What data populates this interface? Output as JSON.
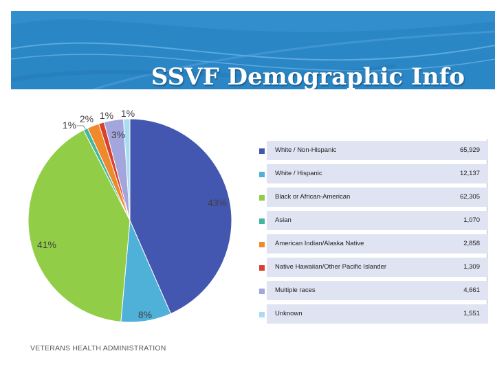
{
  "slide": {
    "title": "SSVF Demographic Info",
    "footer": "VETERANS HEALTH ADMINISTRATION",
    "banner_color": "#2b86c6"
  },
  "chart_data": {
    "type": "pie",
    "title": "",
    "slices": [
      {
        "name": "White / Non-Hispanic",
        "value": 65929,
        "display": "65,929",
        "label": "43%",
        "color": "#4357b0"
      },
      {
        "name": "White / Hispanic",
        "value": 12137,
        "display": "12,137",
        "label": "8%",
        "color": "#4fb0d8"
      },
      {
        "name": "Black or African-American",
        "value": 62305,
        "display": "62,305",
        "label": "41%",
        "color": "#92cd47"
      },
      {
        "name": "Asian",
        "value": 1070,
        "display": "1,070",
        "label": "1%",
        "color": "#40b8a0"
      },
      {
        "name": "American Indian/Alaska Native",
        "value": 2858,
        "display": "2,858",
        "label": "2%",
        "color": "#ee8a2c"
      },
      {
        "name": "Native Hawaiian/Other Pacific Islander",
        "value": 1309,
        "display": "1,309",
        "label": "1%",
        "color": "#d9402e"
      },
      {
        "name": "Multiple races",
        "value": 4661,
        "display": "4,661",
        "label": "3%",
        "color": "#a3a6dc"
      },
      {
        "name": "Unknown",
        "value": 1551,
        "display": "1,551",
        "label": "1%",
        "color": "#a9dcf0"
      }
    ]
  }
}
